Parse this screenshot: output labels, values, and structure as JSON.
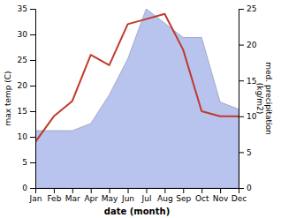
{
  "chart_data": {
    "type": "line",
    "xlabel": "date (month)",
    "ylabel": "max temp (C)",
    "y2label": "med. precipitation\n(kg/m2)",
    "categories": [
      "Jan",
      "Feb",
      "Mar",
      "Apr",
      "May",
      "Jun",
      "Jul",
      "Aug",
      "Sep",
      "Oct",
      "Nov",
      "Dec"
    ],
    "series": [
      {
        "type": "area",
        "axis": "y2",
        "color": "#b8c4ee",
        "values": [
          8,
          8,
          8,
          9,
          13,
          18,
          25,
          23,
          21,
          21,
          12,
          11
        ]
      },
      {
        "type": "line",
        "color": "#c0392b",
        "values": [
          9,
          14,
          17,
          26,
          24,
          32,
          33,
          34,
          27,
          15,
          14,
          14
        ]
      }
    ],
    "ylim": [
      0,
      35
    ],
    "yticks": [
      0,
      5,
      10,
      15,
      20,
      25,
      30,
      35
    ],
    "y2lim": [
      0,
      25
    ],
    "y2ticks": [
      0,
      5,
      10,
      15,
      20,
      25
    ]
  }
}
